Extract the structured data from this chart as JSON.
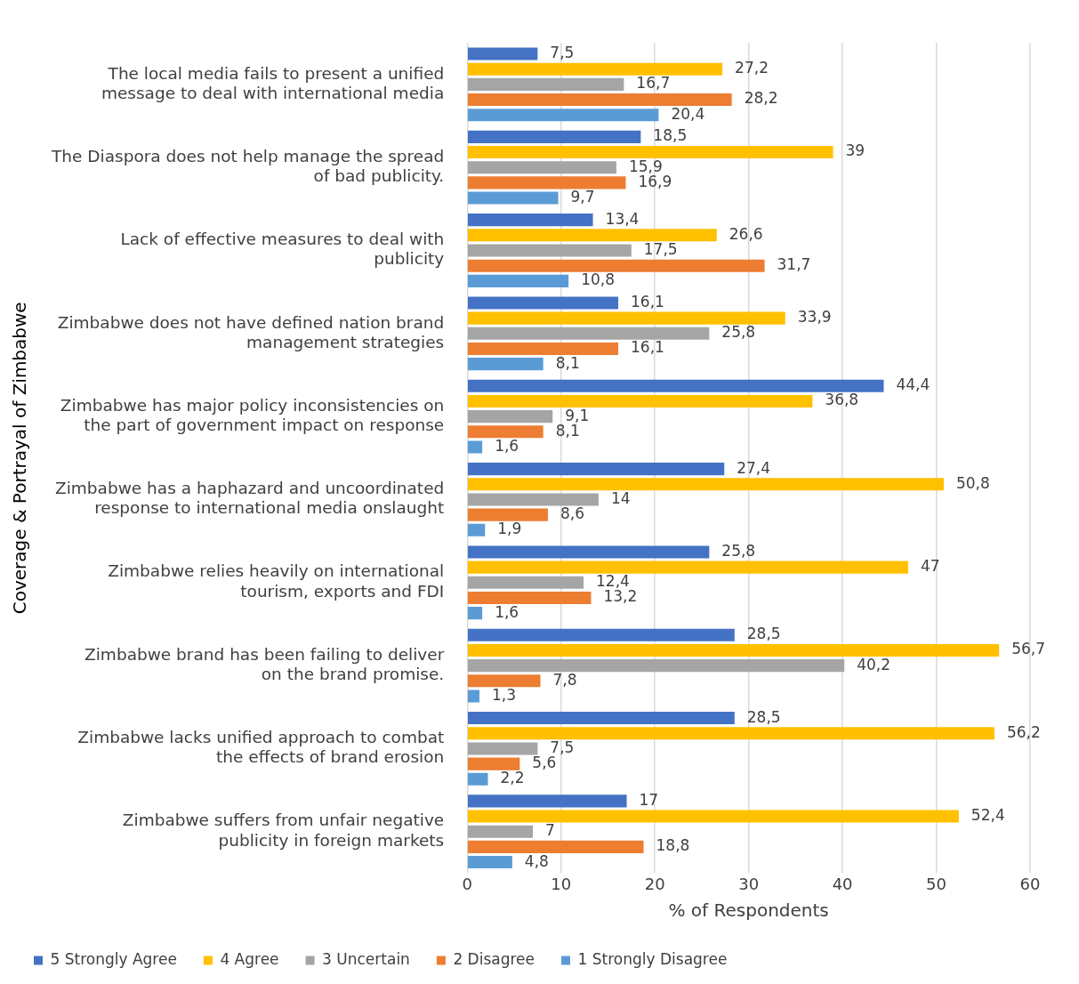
{
  "chart_data": {
    "type": "bar",
    "orientation": "horizontal",
    "ylabel": "Coverage & Portrayal of Zimbabwe",
    "xlabel": "% of Respondents",
    "categories": [
      "The local media fails to present a unified message to deal with international media",
      "The Diaspora does not help manage the spread of bad publicity.",
      "Lack of effective measures to deal with publicity",
      "Zimbabwe does not have defined nation brand management strategies",
      "Zimbabwe has major policy inconsistencies on the part of government impact on response",
      "Zimbabwe has a haphazard and uncoordinated response to international media onslaught",
      "Zimbabwe relies heavily on international tourism, exports and FDI",
      "Zimbabwe brand has been failing to deliver on the brand promise.",
      "Zimbabwe lacks unified approach to combat the effects of brand erosion",
      "Zimbabwe suffers from unfair negative publicity in foreign markets"
    ],
    "series": [
      {
        "name": "5 Strongly Agree",
        "color": "#4472c4",
        "values": [
          7.5,
          18.5,
          13.4,
          16.1,
          44.4,
          27.4,
          25.8,
          28.5,
          28.5,
          17
        ],
        "value_labels": [
          "7,5",
          "18,5",
          "13,4",
          "16,1",
          "44,4",
          "27,4",
          "25,8",
          "28,5",
          "28,5",
          "17"
        ]
      },
      {
        "name": "4 Agree",
        "color": "#ffc000",
        "values": [
          27.2,
          39,
          26.6,
          33.9,
          36.8,
          50.8,
          47,
          56.7,
          56.2,
          52.4
        ],
        "value_labels": [
          "27,2",
          "39",
          "26,6",
          "33,9",
          "36,8",
          "50,8",
          "47",
          "56,7",
          "56,2",
          "52,4"
        ]
      },
      {
        "name": "3 Uncertain",
        "color": "#a5a5a5",
        "values": [
          16.7,
          15.9,
          17.5,
          25.8,
          9.1,
          14,
          12.4,
          40.2,
          7.5,
          7
        ],
        "value_labels": [
          "16,7",
          "15,9",
          "17,5",
          "25,8",
          "9,1",
          "14",
          "12,4",
          "40,2",
          "7,5",
          "7"
        ]
      },
      {
        "name": "2 Disagree",
        "color": "#ed7d31",
        "values": [
          28.2,
          16.9,
          31.7,
          16.1,
          8.1,
          8.6,
          13.2,
          7.8,
          5.6,
          18.8
        ],
        "value_labels": [
          "28,2",
          "16,9",
          "31,7",
          "16,1",
          "8,1",
          "8,6",
          "13,2",
          "7,8",
          "5,6",
          "18,8"
        ]
      },
      {
        "name": "1 Strongly Disagree",
        "color": "#5b9bd5",
        "values": [
          20.4,
          9.7,
          10.8,
          8.1,
          1.6,
          1.9,
          1.6,
          1.3,
          2.2,
          4.8
        ],
        "value_labels": [
          "20,4",
          "9,7",
          "10,8",
          "8,1",
          "1,6",
          "1,9",
          "1,6",
          "1,3",
          "2,2",
          "4,8"
        ]
      }
    ],
    "xlim": [
      0,
      60
    ],
    "xticks": [
      0,
      10,
      20,
      30,
      40,
      50,
      60
    ],
    "grid": "x",
    "legend": "bottom left"
  }
}
